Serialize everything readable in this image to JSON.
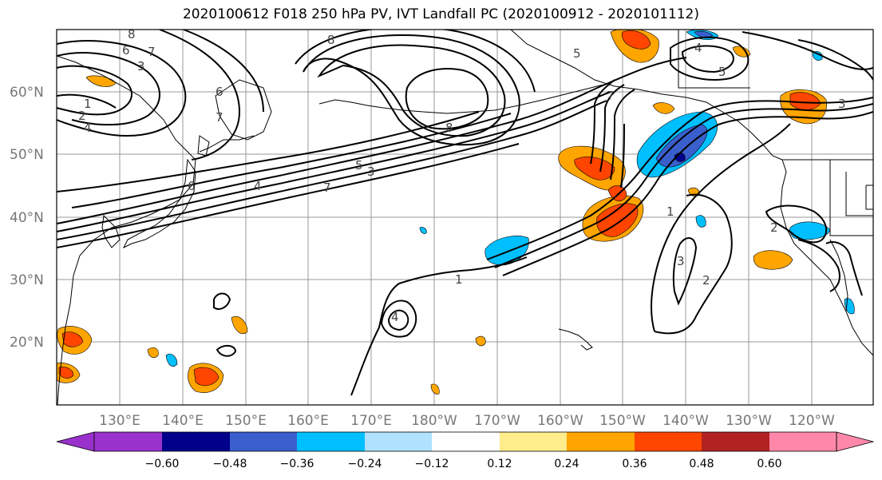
{
  "title": "2020100612 F018 250 hPa PV, IVT Landfall PC (2020100912 - 2020101112)",
  "lat_labels": [
    "60°N",
    "50°N",
    "40°N",
    "30°N",
    "20°N"
  ],
  "lon_labels": [
    "130°E",
    "140°E",
    "150°E",
    "160°E",
    "170°E",
    "180°W",
    "170°W",
    "160°W",
    "150°W",
    "140°W",
    "130°W",
    "120°W"
  ],
  "colorbar": {
    "ticks": [
      "−0.60",
      "−0.48",
      "−0.36",
      "−0.24",
      "−0.12",
      "0.12",
      "0.24",
      "0.36",
      "0.48",
      "0.60"
    ],
    "colors": [
      "#9932cc",
      "#00008b",
      "#3a5fcd",
      "#00bfff",
      "#b0e2ff",
      "#ffffff",
      "#ffec8b",
      "#ffa500",
      "#ff4500",
      "#b22222",
      "#ff88aa"
    ]
  },
  "contour_labels": [
    "8",
    "6",
    "7",
    "3",
    "1",
    "2",
    "4",
    "6",
    "7",
    "8",
    "5",
    "3",
    "4",
    "7",
    "6",
    "5",
    "7",
    "5",
    "4",
    "8",
    "1",
    "2",
    "3",
    "2",
    "1",
    "4",
    "3"
  ]
}
